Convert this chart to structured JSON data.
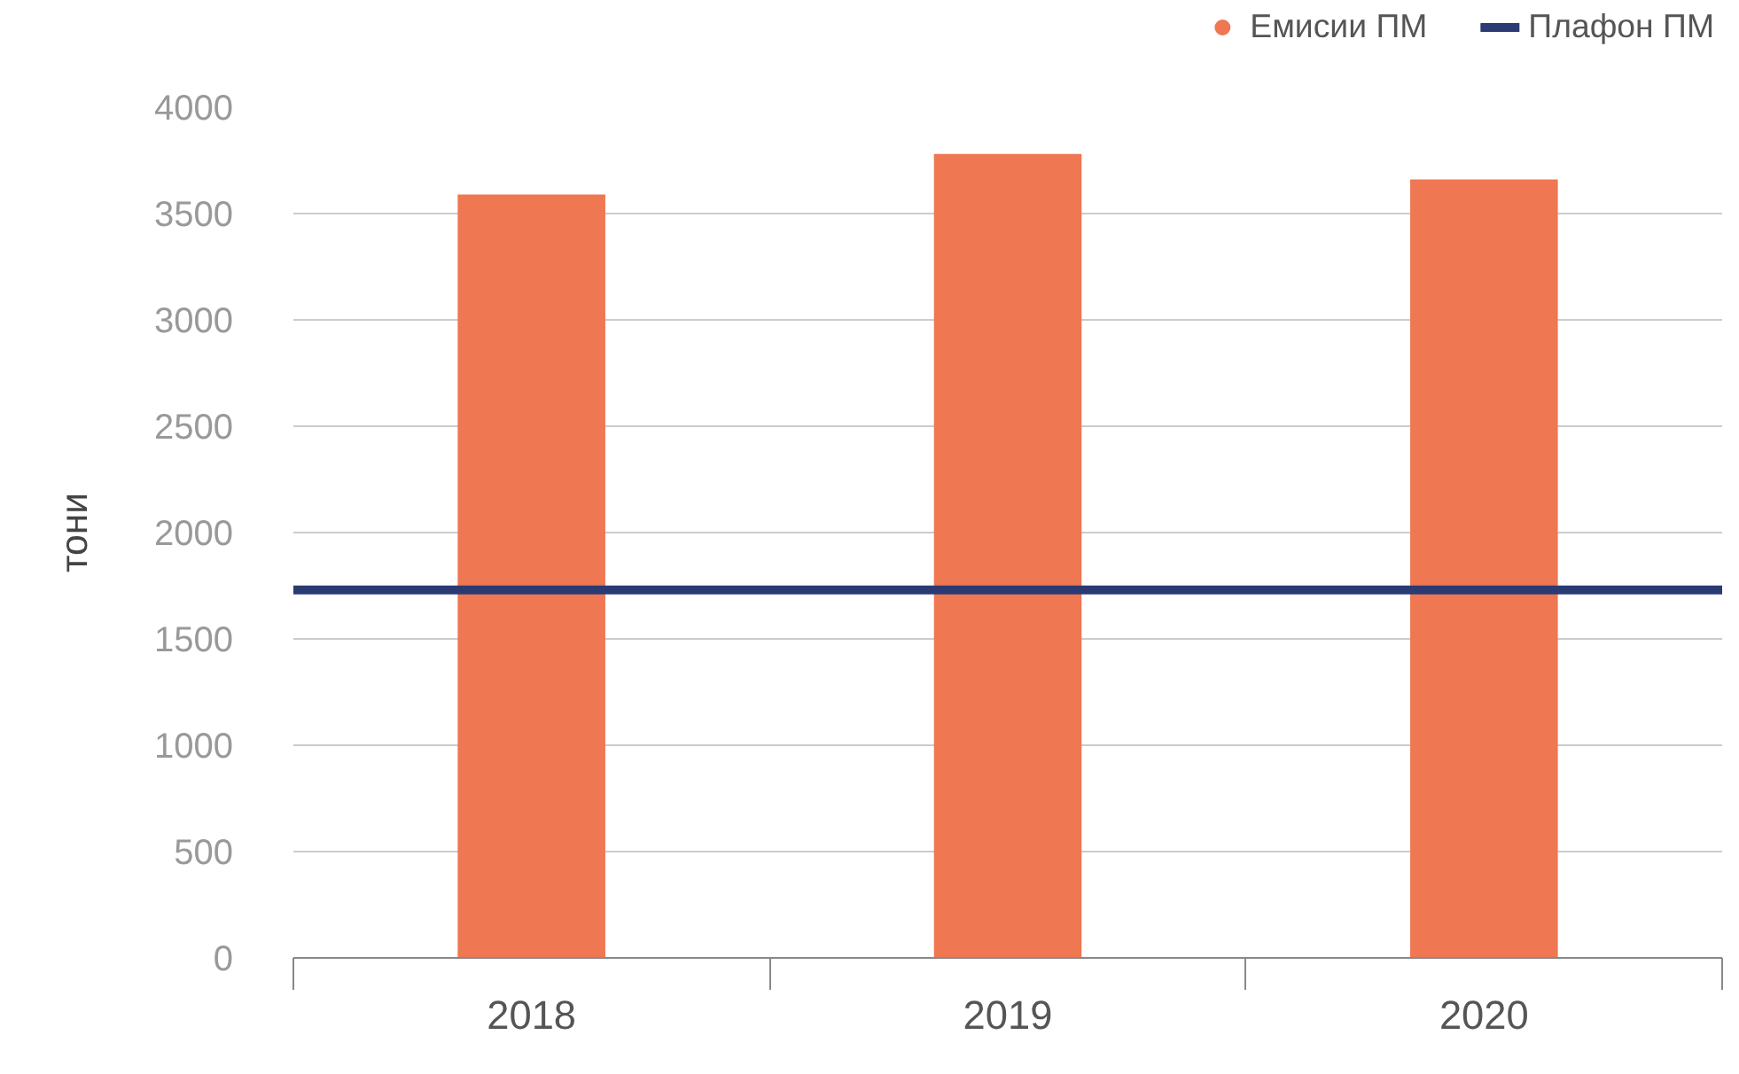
{
  "chart_data": {
    "type": "bar",
    "ylabel": "тони",
    "categories": [
      "2018",
      "2019",
      "2020"
    ],
    "series": [
      {
        "name": "Емисии ПМ",
        "color": "#ef7752",
        "values": [
          3590,
          3780,
          3660
        ]
      }
    ],
    "ref_lines": [
      {
        "axis": "y",
        "value": 1730,
        "label": "Плафон ПМ",
        "color": "#2b3a73"
      }
    ],
    "ylim": [
      0,
      4000
    ],
    "yticks": [
      0,
      500,
      1000,
      1500,
      2000,
      2500,
      3000,
      3500,
      4000
    ],
    "grid": "y",
    "legend": "top right"
  }
}
